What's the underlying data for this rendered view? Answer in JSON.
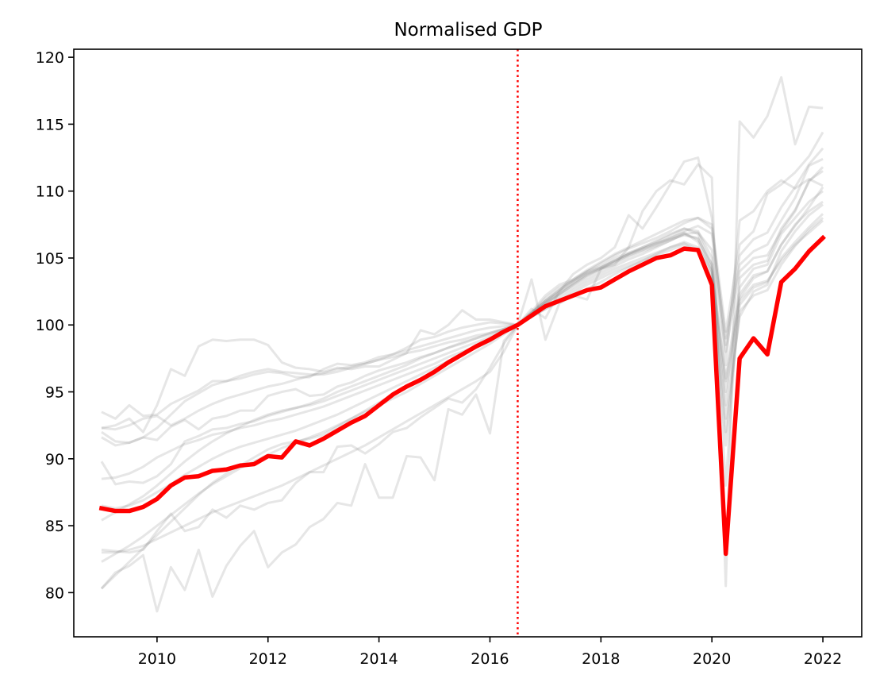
{
  "chart_data": {
    "type": "line",
    "title": "Normalised GDP",
    "xlabel": "",
    "ylabel": "",
    "xlim": [
      2008.5,
      2022.7
    ],
    "ylim": [
      76.7,
      120.6
    ],
    "x_ticks": [
      2010,
      2012,
      2014,
      2016,
      2018,
      2020,
      2022
    ],
    "x_tick_labels": [
      "2010",
      "2012",
      "2014",
      "2016",
      "2018",
      "2020",
      "2022"
    ],
    "y_ticks": [
      80,
      85,
      90,
      95,
      100,
      105,
      110,
      115,
      120
    ],
    "y_tick_labels": [
      "80",
      "85",
      "90",
      "95",
      "100",
      "105",
      "110",
      "115",
      "120"
    ],
    "vline": {
      "x": 2016.5,
      "style": "dotted",
      "color": "#ff0000"
    },
    "grid": false,
    "highlight_color": "#ff0000",
    "background_series_color": "#808080",
    "x": [
      2009.0,
      2009.25,
      2009.5,
      2009.75,
      2010.0,
      2010.25,
      2010.5,
      2010.75,
      2011.0,
      2011.25,
      2011.5,
      2011.75,
      2012.0,
      2012.25,
      2012.5,
      2012.75,
      2013.0,
      2013.25,
      2013.5,
      2013.75,
      2014.0,
      2014.25,
      2014.5,
      2014.75,
      2015.0,
      2015.25,
      2015.5,
      2015.75,
      2016.0,
      2016.25,
      2016.5,
      2016.75,
      2017.0,
      2017.25,
      2017.5,
      2017.75,
      2018.0,
      2018.25,
      2018.5,
      2018.75,
      2019.0,
      2019.25,
      2019.5,
      2019.75,
      2020.0,
      2020.25,
      2020.5,
      2020.75,
      2021.0,
      2021.25,
      2021.5,
      2021.75,
      2022.0
    ],
    "highlight_series": {
      "values": [
        86.3,
        86.1,
        86.1,
        86.4,
        87.0,
        88.0,
        88.6,
        88.7,
        89.1,
        89.2,
        89.5,
        89.6,
        90.2,
        90.1,
        91.3,
        91.0,
        91.5,
        92.1,
        92.7,
        93.2,
        94.0,
        94.8,
        95.4,
        95.9,
        96.5,
        97.2,
        97.8,
        98.4,
        98.9,
        99.5,
        100.0,
        100.7,
        101.4,
        101.8,
        102.2,
        102.6,
        102.8,
        103.4,
        104.0,
        104.5,
        105.0,
        105.2,
        105.7,
        105.6,
        103.0,
        82.9,
        97.5,
        99.0,
        97.8,
        103.2,
        104.2,
        105.5,
        106.5
      ]
    },
    "background_series": [
      {
        "values": [
          80.3,
          81.3,
          82.3,
          83.3,
          84.3,
          85.3,
          86.3,
          87.3,
          88.2,
          88.9,
          89.5,
          90.1,
          90.7,
          91.1,
          91.3,
          91.5,
          91.8,
          92.4,
          93.0,
          93.6,
          94.2,
          94.8,
          95.4,
          96.0,
          96.6,
          97.2,
          97.8,
          98.4,
          99.0,
          99.5,
          100.0,
          100.9,
          101.8,
          102.6,
          103.3,
          103.9,
          104.3,
          104.8,
          105.3,
          105.7,
          106.1,
          106.4,
          106.7,
          106.5,
          104.2,
          93.0,
          100.6,
          102.5,
          103.0,
          105.5,
          107.0,
          108.2,
          109.0
        ]
      },
      {
        "values": [
          83.0,
          83.0,
          83.2,
          83.5,
          84.0,
          84.5,
          85.0,
          85.5,
          86.0,
          86.4,
          86.8,
          87.2,
          87.6,
          88.0,
          88.5,
          89.0,
          89.5,
          90.0,
          90.5,
          91.0,
          91.6,
          92.2,
          92.8,
          93.4,
          94.0,
          94.6,
          95.2,
          95.8,
          96.5,
          98.0,
          100.0,
          100.8,
          101.7,
          102.4,
          103.1,
          103.8,
          104.3,
          104.8,
          105.3,
          105.8,
          106.3,
          106.8,
          107.2,
          106.8,
          104.5,
          95.8,
          102.0,
          103.5,
          104.0,
          106.0,
          107.5,
          108.5,
          109.2
        ]
      },
      {
        "values": [
          82.3,
          82.9,
          83.5,
          84.2,
          85.0,
          85.8,
          86.6,
          87.4,
          88.1,
          88.7,
          89.3,
          89.8,
          90.3,
          90.8,
          91.2,
          91.6,
          92.0,
          92.5,
          93.0,
          93.5,
          94.0,
          94.5,
          95.0,
          95.6,
          96.2,
          96.8,
          97.4,
          98.0,
          98.6,
          99.3,
          100.0,
          100.9,
          101.8,
          102.5,
          103.2,
          103.8,
          104.2,
          104.8,
          105.3,
          105.7,
          106.1,
          106.5,
          106.9,
          106.2,
          104.0,
          96.0,
          102.8,
          104.2,
          104.5,
          106.8,
          108.0,
          109.2,
          110.0
        ]
      },
      {
        "values": [
          80.3,
          81.5,
          82.0,
          82.8,
          78.6,
          81.9,
          80.2,
          83.2,
          79.7,
          82.0,
          83.5,
          84.6,
          81.9,
          83.0,
          83.6,
          84.9,
          85.5,
          86.7,
          86.5,
          89.6,
          87.1,
          87.1,
          90.2,
          90.1,
          88.4,
          93.7,
          93.3,
          94.8,
          91.9,
          98.8,
          100.0,
          103.4,
          98.9,
          101.6,
          102.2,
          101.9,
          104.2,
          104.5,
          105.8,
          108.5,
          110.0,
          110.8,
          110.5,
          112.0,
          111.0,
          80.5,
          115.2,
          114.0,
          115.6,
          118.5,
          113.5,
          116.3,
          116.2
        ]
      },
      {
        "values": [
          83.2,
          83.1,
          83.0,
          83.2,
          84.6,
          85.9,
          84.6,
          84.9,
          86.2,
          85.6,
          86.5,
          86.2,
          86.7,
          86.9,
          88.2,
          89.0,
          89.0,
          90.9,
          91.0,
          90.4,
          91.1,
          92.0,
          92.3,
          93.1,
          93.8,
          94.5,
          94.2,
          95.2,
          96.8,
          98.6,
          100.0,
          101.0,
          102.2,
          103.0,
          103.4,
          104.0,
          104.4,
          105.0,
          105.4,
          105.8,
          106.2,
          106.7,
          107.2,
          107.0,
          105.0,
          88.0,
          103.5,
          104.5,
          104.8,
          107.2,
          108.6,
          110.7,
          111.8
        ]
      },
      {
        "values": [
          85.4,
          86.0,
          86.6,
          87.2,
          88.0,
          88.9,
          89.8,
          90.6,
          91.3,
          91.9,
          92.4,
          92.9,
          93.3,
          93.6,
          93.8,
          94.0,
          94.3,
          94.7,
          95.1,
          95.5,
          95.9,
          96.3,
          96.7,
          97.1,
          97.5,
          97.9,
          98.3,
          98.7,
          99.1,
          99.6,
          100.0,
          100.6,
          101.2,
          101.8,
          102.4,
          103.0,
          103.5,
          104.0,
          104.4,
          104.8,
          105.2,
          105.6,
          106.0,
          105.5,
          103.4,
          92.0,
          101.0,
          102.2,
          102.6,
          104.5,
          105.9,
          107.1,
          108.0
        ]
      },
      {
        "values": [
          86.5,
          86.3,
          86.5,
          86.9,
          87.5,
          88.1,
          88.8,
          89.4,
          90.0,
          90.5,
          90.9,
          91.2,
          91.5,
          91.8,
          92.1,
          92.5,
          92.9,
          93.3,
          93.8,
          94.3,
          94.8,
          95.3,
          95.8,
          96.3,
          96.8,
          97.3,
          97.8,
          98.3,
          98.8,
          99.4,
          100.0,
          100.7,
          101.4,
          102.0,
          102.6,
          103.2,
          103.7,
          104.2,
          104.6,
          105.0,
          105.4,
          105.8,
          106.1,
          105.6,
          103.7,
          91.0,
          101.5,
          102.8,
          103.2,
          105.0,
          106.2,
          107.3,
          108.3
        ]
      },
      {
        "values": [
          88.5,
          88.6,
          88.9,
          89.4,
          90.1,
          90.6,
          91.1,
          91.4,
          91.8,
          92.0,
          92.3,
          92.5,
          92.8,
          93.0,
          93.3,
          93.6,
          93.9,
          94.3,
          94.7,
          95.1,
          95.5,
          95.9,
          96.3,
          96.7,
          97.1,
          97.6,
          98.0,
          98.4,
          98.9,
          99.5,
          100.0,
          100.8,
          101.6,
          102.3,
          103.0,
          103.6,
          104.1,
          104.6,
          105.1,
          105.5,
          105.9,
          106.3,
          106.8,
          106.4,
          104.5,
          94.0,
          102.3,
          103.7,
          104.0,
          106.0,
          107.4,
          108.8,
          110.3
        ]
      },
      {
        "values": [
          89.8,
          88.1,
          88.3,
          88.2,
          88.7,
          89.6,
          91.3,
          91.7,
          92.2,
          92.3,
          92.6,
          92.8,
          93.2,
          93.5,
          93.8,
          94.1,
          94.5,
          95.0,
          95.4,
          95.8,
          96.2,
          96.6,
          97.0,
          97.5,
          97.9,
          98.3,
          98.6,
          99.0,
          99.4,
          99.7,
          100.0,
          100.6,
          101.2,
          101.7,
          102.2,
          102.7,
          103.2,
          103.8,
          104.3,
          104.8,
          105.3,
          105.8,
          106.2,
          105.8,
          104.0,
          95.0,
          101.8,
          103.0,
          103.3,
          104.8,
          106.0,
          106.9,
          107.8
        ]
      },
      {
        "values": [
          91.6,
          91.0,
          91.2,
          91.6,
          91.4,
          92.4,
          92.9,
          92.2,
          93.0,
          93.2,
          93.6,
          93.6,
          94.7,
          95.0,
          95.2,
          94.7,
          94.8,
          95.4,
          95.7,
          96.2,
          96.6,
          96.9,
          97.2,
          97.6,
          97.9,
          98.3,
          98.7,
          99.0,
          99.3,
          99.7,
          100.0,
          100.8,
          101.6,
          102.2,
          102.8,
          103.4,
          103.9,
          104.4,
          104.9,
          105.3,
          105.8,
          106.3,
          106.8,
          106.9,
          105.6,
          98.0,
          104.0,
          105.0,
          105.2,
          107.0,
          108.5,
          110.8,
          111.5
        ]
      },
      {
        "values": [
          92.3,
          92.2,
          92.5,
          93.0,
          93.2,
          92.5,
          93.0,
          93.6,
          94.1,
          94.5,
          94.8,
          95.1,
          95.4,
          95.6,
          95.9,
          96.2,
          96.4,
          96.7,
          96.9,
          97.1,
          97.4,
          97.6,
          97.9,
          98.1,
          98.4,
          98.7,
          98.9,
          99.2,
          99.4,
          99.7,
          100.0,
          100.8,
          101.6,
          102.3,
          103.0,
          103.7,
          104.2,
          104.7,
          105.2,
          105.6,
          106.0,
          106.5,
          107.0,
          107.4,
          106.8,
          99.0,
          104.5,
          105.5,
          106.0,
          107.8,
          109.5,
          111.9,
          112.4
        ]
      },
      {
        "values": [
          92.0,
          91.3,
          91.2,
          91.6,
          92.3,
          93.3,
          94.3,
          94.9,
          95.5,
          95.8,
          96.2,
          96.5,
          96.7,
          96.5,
          96.4,
          96.3,
          96.3,
          96.5,
          96.8,
          97.1,
          97.4,
          97.8,
          98.1,
          98.4,
          98.7,
          99.0,
          99.3,
          99.6,
          99.8,
          99.9,
          100.0,
          100.9,
          101.8,
          102.6,
          103.4,
          104.1,
          104.7,
          105.3,
          105.8,
          106.3,
          106.8,
          107.3,
          107.8,
          108.0,
          107.2,
          98.5,
          105.2,
          106.4,
          106.9,
          108.8,
          110.3,
          112.0,
          113.2
        ]
      },
      {
        "values": [
          93.5,
          93.0,
          94.0,
          93.2,
          93.3,
          94.1,
          94.6,
          95.1,
          95.8,
          95.8,
          96.0,
          96.3,
          96.5,
          96.4,
          96.1,
          96.1,
          96.7,
          97.1,
          97.0,
          97.2,
          97.6,
          97.8,
          98.3,
          98.9,
          99.1,
          99.5,
          99.8,
          100.0,
          100.2,
          100.1,
          100.0,
          100.9,
          102.0,
          102.8,
          103.3,
          104.0,
          104.6,
          105.2,
          105.7,
          106.1,
          106.5,
          107.0,
          107.6,
          108.0,
          107.5,
          99.5,
          106.0,
          107.0,
          109.8,
          110.5,
          111.4,
          112.6,
          114.4
        ]
      },
      {
        "values": [
          92.3,
          92.5,
          93.0,
          92.0,
          94.0,
          96.7,
          96.2,
          98.4,
          98.9,
          98.8,
          98.9,
          98.9,
          98.5,
          97.2,
          96.8,
          96.7,
          96.5,
          96.8,
          96.7,
          96.9,
          96.9,
          97.4,
          97.9,
          99.6,
          99.3,
          100.0,
          101.1,
          100.4,
          100.4,
          100.2,
          100.0,
          101.2,
          100.5,
          102.5,
          103.8,
          104.5,
          105.0,
          105.8,
          108.2,
          107.2,
          108.8,
          110.5,
          112.2,
          112.5,
          108.0,
          97.0,
          107.8,
          108.5,
          110.0,
          110.8,
          110.2,
          110.9,
          110.4
        ]
      }
    ]
  }
}
